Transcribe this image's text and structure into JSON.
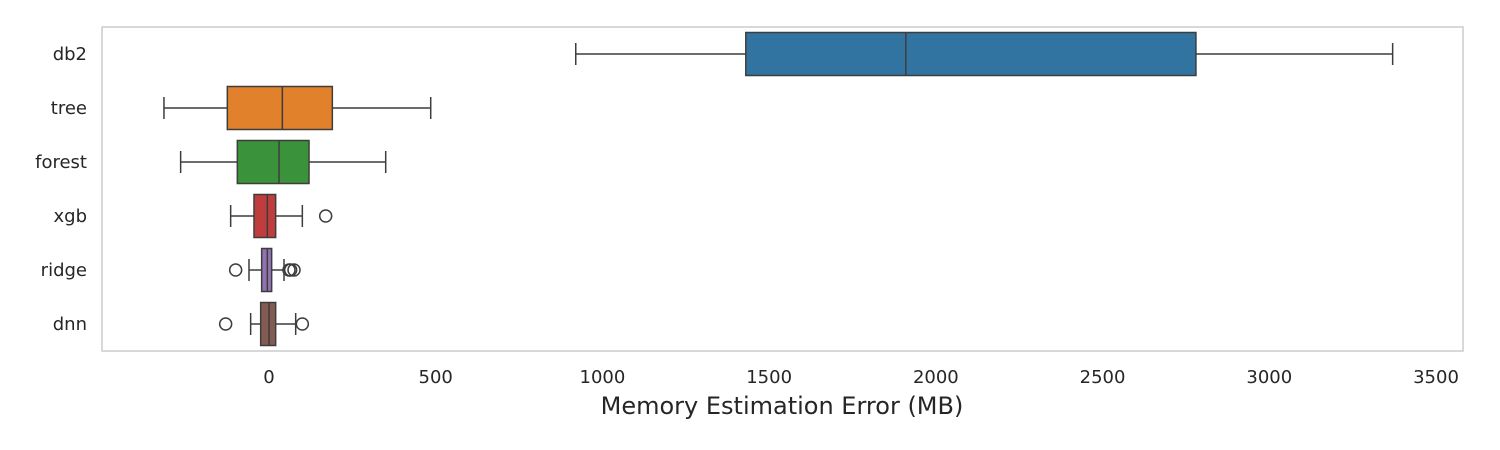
{
  "chart_data": {
    "type": "boxplot",
    "orientation": "horizontal",
    "title": "",
    "xlabel": "Memory Estimation Error (MB)",
    "ylabel": "",
    "xlim": [
      -500,
      3550
    ],
    "xticks": [
      0,
      500,
      1000,
      1500,
      2000,
      2500,
      3000,
      3500
    ],
    "grid": false,
    "series": [
      {
        "category": "db2",
        "color": "#3274a1",
        "whisker_low": 920,
        "q1": 1430,
        "median": 1910,
        "q3": 2780,
        "whisker_high": 3370,
        "outliers": []
      },
      {
        "category": "tree",
        "color": "#e1812c",
        "whisker_low": -315,
        "q1": -125,
        "median": 40,
        "q3": 190,
        "whisker_high": 485,
        "outliers": []
      },
      {
        "category": "forest",
        "color": "#3a923a",
        "whisker_low": -265,
        "q1": -95,
        "median": 30,
        "q3": 120,
        "whisker_high": 350,
        "outliers": []
      },
      {
        "category": "xgb",
        "color": "#c03d3e",
        "whisker_low": -115,
        "q1": -45,
        "median": -5,
        "q3": 20,
        "whisker_high": 100,
        "outliers": [
          170
        ]
      },
      {
        "category": "ridge",
        "color": "#9372b2",
        "whisker_low": -60,
        "q1": -22,
        "median": -5,
        "q3": 8,
        "whisker_high": 45,
        "outliers": [
          -100,
          60,
          65,
          75
        ]
      },
      {
        "category": "dnn",
        "color": "#845b53",
        "whisker_low": -55,
        "q1": -25,
        "median": 0,
        "q3": 20,
        "whisker_high": 80,
        "outliers": [
          -130,
          100
        ]
      }
    ]
  }
}
